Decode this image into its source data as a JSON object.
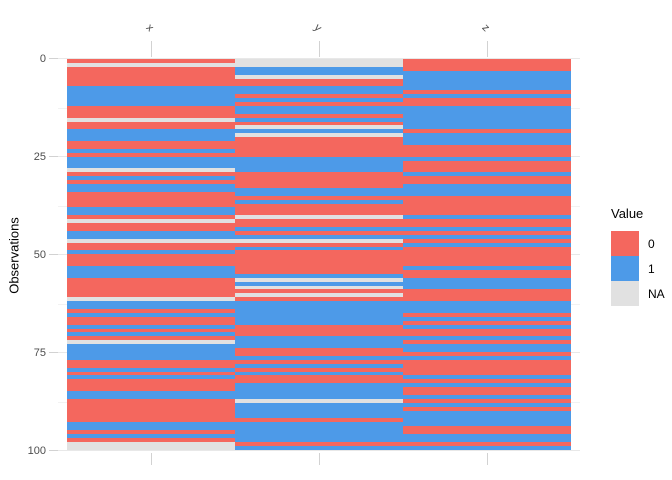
{
  "chart_data": {
    "type": "heatmap",
    "title": "",
    "xlabel": "",
    "ylabel": "Observations",
    "columns": [
      "x",
      "y",
      "z"
    ],
    "yticks": [
      "0",
      "25",
      "50",
      "75",
      "100"
    ],
    "ylim": [
      0,
      100
    ],
    "grid": true,
    "legend": {
      "title": "Value",
      "position": "right",
      "entries": [
        {
          "label": "0",
          "color": "#f4675e"
        },
        {
          "label": "1",
          "color": "#4d9ae8"
        },
        {
          "label": "NA",
          "color": "#e1e1e1"
        }
      ]
    },
    "series": [
      {
        "name": "x",
        "values": [
          "0",
          "NA",
          "0",
          "0",
          "0",
          "0",
          "0",
          "1",
          "1",
          "1",
          "1",
          "1",
          "0",
          "0",
          "0",
          "NA",
          "0",
          "0",
          "1",
          "1",
          "1",
          "0",
          "0",
          "1",
          "0",
          "1",
          "1",
          "1",
          "NA",
          "0",
          "1",
          "0",
          "1",
          "1",
          "0",
          "0",
          "0",
          "0",
          "1",
          "1",
          "0",
          "NA",
          "0",
          "0",
          "1",
          "1",
          "NA",
          "0",
          "0",
          "1",
          "0",
          "0",
          "0",
          "1",
          "1",
          "1",
          "0",
          "0",
          "0",
          "0",
          "0",
          "NA",
          "1",
          "1",
          "0",
          "1",
          "0",
          "0",
          "1",
          "0",
          "1",
          "0",
          "NA",
          "1",
          "1",
          "1",
          "1",
          "0",
          "0",
          "1",
          "0",
          "1",
          "0",
          "0",
          "0",
          "1",
          "1",
          "0",
          "0",
          "0",
          "0",
          "0",
          "0",
          "1",
          "1",
          "0",
          "1",
          "0",
          "NA",
          "NA"
        ]
      },
      {
        "name": "y",
        "values": [
          "NA",
          "NA",
          "1",
          "1",
          "NA",
          "0",
          "0",
          "1",
          "1",
          "0",
          "1",
          "0",
          "1",
          "1",
          "0",
          "1",
          "0",
          "NA",
          "1",
          "NA",
          "0",
          "0",
          "0",
          "0",
          "0",
          "1",
          "1",
          "1",
          "1",
          "0",
          "0",
          "0",
          "0",
          "1",
          "1",
          "0",
          "1",
          "0",
          "0",
          "0",
          "NA",
          "0",
          "0",
          "1",
          "0",
          "1",
          "NA",
          "0",
          "1",
          "0",
          "0",
          "0",
          "0",
          "0",
          "0",
          "1",
          "NA",
          "1",
          "NA",
          "0",
          "NA",
          "0",
          "1",
          "1",
          "1",
          "1",
          "1",
          "1",
          "0",
          "0",
          "0",
          "1",
          "1",
          "1",
          "0",
          "0",
          "1",
          "0",
          "1",
          "0",
          "1",
          "0",
          "0",
          "1",
          "1",
          "1",
          "1",
          "NA",
          "1",
          "1",
          "1",
          "1",
          "0",
          "1",
          "1",
          "1",
          "1",
          "1",
          "0",
          "1"
        ]
      },
      {
        "name": "z",
        "values": [
          "0",
          "0",
          "0",
          "1",
          "1",
          "1",
          "1",
          "1",
          "0",
          "1",
          "0",
          "0",
          "1",
          "1",
          "1",
          "1",
          "1",
          "1",
          "0",
          "1",
          "1",
          "1",
          "0",
          "0",
          "0",
          "1",
          "0",
          "0",
          "0",
          "1",
          "0",
          "0",
          "1",
          "1",
          "1",
          "0",
          "0",
          "0",
          "0",
          "0",
          "1",
          "0",
          "0",
          "1",
          "0",
          "1",
          "0",
          "1",
          "0",
          "0",
          "0",
          "0",
          "0",
          "1",
          "0",
          "0",
          "1",
          "1",
          "1",
          "0",
          "0",
          "0",
          "1",
          "1",
          "1",
          "0",
          "1",
          "0",
          "1",
          "0",
          "0",
          "1",
          "0",
          "1",
          "1",
          "0",
          "1",
          "0",
          "0",
          "0",
          "0",
          "1",
          "0",
          "1",
          "0",
          "0",
          "1",
          "0",
          "1",
          "0",
          "1",
          "1",
          "1",
          "1",
          "0",
          "0",
          "1",
          "1",
          "0",
          "1"
        ]
      }
    ]
  }
}
